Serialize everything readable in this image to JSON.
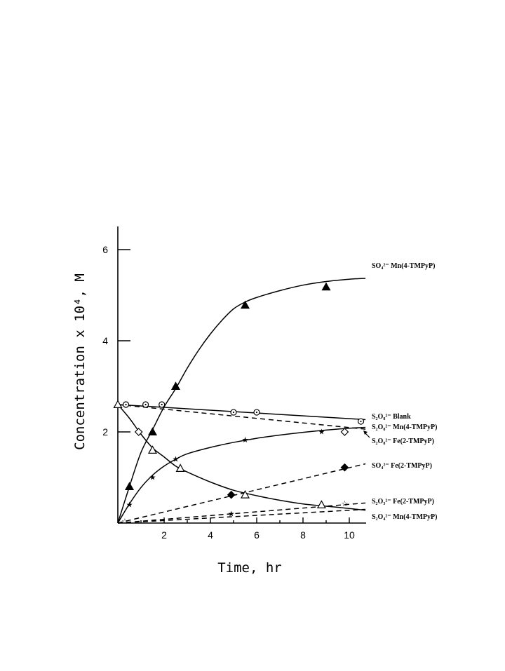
{
  "chart_data": {
    "type": "line",
    "xlabel": "Time, hr",
    "ylabel": "Concentration x 10⁴, M",
    "xlim": [
      0,
      10.8
    ],
    "ylim": [
      0,
      6.5
    ],
    "x_ticks": [
      "2",
      "4",
      "6",
      "8",
      "10"
    ],
    "y_ticks": [
      "2",
      "4",
      "6"
    ],
    "series": [
      {
        "name": "SO₄²⁻ Mn(4-TMPyP)",
        "style": "solid",
        "marker": "filled-triangle",
        "curve": [
          [
            0,
            0
          ],
          [
            0.5,
            0.8
          ],
          [
            1,
            1.55
          ],
          [
            1.5,
            2.05
          ],
          [
            2,
            2.55
          ],
          [
            2.5,
            2.95
          ],
          [
            3,
            3.4
          ],
          [
            3.5,
            3.8
          ],
          [
            4,
            4.15
          ],
          [
            4.5,
            4.45
          ],
          [
            5,
            4.7
          ],
          [
            5.5,
            4.85
          ],
          [
            6,
            4.95
          ],
          [
            7,
            5.1
          ],
          [
            8,
            5.22
          ],
          [
            9,
            5.3
          ],
          [
            10,
            5.35
          ],
          [
            10.7,
            5.37
          ]
        ],
        "points": [
          [
            0.5,
            0.8
          ],
          [
            1.5,
            2.0
          ],
          [
            2.5,
            3.0
          ],
          [
            5.5,
            4.78
          ],
          [
            9,
            5.18
          ]
        ]
      },
      {
        "name": "S₂O₈²⁻ Blank",
        "style": "solid",
        "marker": "dotted-circle",
        "curve": [
          [
            0,
            2.6
          ],
          [
            10.7,
            2.27
          ]
        ],
        "points": [
          [
            0.35,
            2.6
          ],
          [
            1.2,
            2.6
          ],
          [
            1.9,
            2.6
          ],
          [
            5,
            2.43
          ],
          [
            6,
            2.43
          ],
          [
            10.5,
            2.23
          ]
        ]
      },
      {
        "name": "S₂O₈²⁻ Mn(4-TMPyP)",
        "style": "dashed",
        "marker": "open-diamond",
        "curve": [
          [
            0,
            2.6
          ],
          [
            10.7,
            2.06
          ]
        ],
        "points": [
          [
            0.9,
            2.0
          ],
          [
            9.8,
            2.0
          ]
        ]
      },
      {
        "name": "S₂O₈²⁻ Fe(2-TMPyP)",
        "style": "solid",
        "marker": "open-triangle",
        "curve": [
          [
            0,
            2.6
          ],
          [
            0.5,
            2.3
          ],
          [
            1,
            1.95
          ],
          [
            1.5,
            1.65
          ],
          [
            2,
            1.45
          ],
          [
            2.5,
            1.25
          ],
          [
            3,
            1.12
          ],
          [
            4,
            0.9
          ],
          [
            5,
            0.72
          ],
          [
            6,
            0.6
          ],
          [
            7,
            0.5
          ],
          [
            8,
            0.42
          ],
          [
            9,
            0.37
          ],
          [
            10,
            0.32
          ],
          [
            10.7,
            0.28
          ]
        ],
        "points": [
          [
            0,
            2.6
          ],
          [
            1.5,
            1.6
          ],
          [
            2.7,
            1.2
          ],
          [
            5.5,
            0.62
          ],
          [
            8.8,
            0.4
          ]
        ]
      },
      {
        "name": "S₂O₈²⁻ Mn(4-TMPyP)",
        "style": "solid",
        "marker": "star",
        "curve": [
          [
            0,
            0
          ],
          [
            0.5,
            0.42
          ],
          [
            1,
            0.78
          ],
          [
            1.5,
            1.05
          ],
          [
            2,
            1.25
          ],
          [
            2.5,
            1.4
          ],
          [
            3,
            1.52
          ],
          [
            4,
            1.66
          ],
          [
            5,
            1.77
          ],
          [
            6,
            1.86
          ],
          [
            7,
            1.93
          ],
          [
            8,
            1.99
          ],
          [
            9,
            2.04
          ],
          [
            10,
            2.08
          ],
          [
            10.7,
            2.1
          ]
        ],
        "points": [
          [
            0.5,
            0.4
          ],
          [
            1.5,
            1.0
          ],
          [
            2.5,
            1.4
          ],
          [
            5.5,
            1.82
          ],
          [
            8.8,
            2.0
          ]
        ]
      },
      {
        "name": "SO₄²⁻ Fe(2-TMPyP)",
        "style": "dashed",
        "marker": "filled-diamond",
        "curve": [
          [
            0,
            0
          ],
          [
            10.7,
            1.3
          ]
        ],
        "points": [
          [
            4.9,
            0.62
          ],
          [
            9.8,
            1.22
          ]
        ]
      },
      {
        "name": "S₂O₃²⁻ Fe(2-TMPyP)",
        "style": "dashed",
        "marker": "open-star",
        "curve": [
          [
            0,
            0
          ],
          [
            10.7,
            0.44
          ]
        ],
        "points": [
          [
            0.3,
            0.04
          ],
          [
            9.8,
            0.42
          ]
        ]
      },
      {
        "name": "S₂O₄²⁻ Mn(4-TMPyP)",
        "style": "dashed",
        "marker": "star",
        "curve": [
          [
            0,
            0
          ],
          [
            10.7,
            0.3
          ]
        ],
        "points": [
          [
            4.9,
            0.2
          ]
        ]
      }
    ]
  }
}
